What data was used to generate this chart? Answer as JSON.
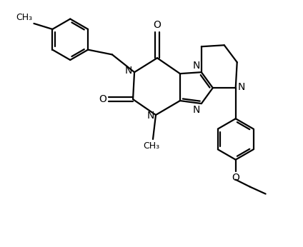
{
  "line_color": "#000000",
  "bg_color": "#ffffff",
  "lw": 1.6,
  "fs": 10,
  "figsize": [
    4.24,
    3.46
  ],
  "dpi": 100,
  "xlim": [
    0,
    10
  ],
  "ylim": [
    0,
    8.6
  ]
}
